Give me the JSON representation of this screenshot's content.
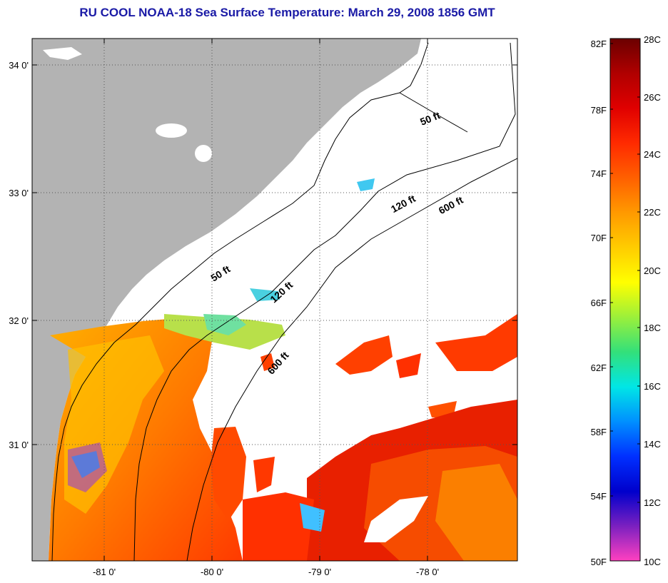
{
  "title": "RU COOL  NOAA-18  Sea Surface Temperature:  March 29, 2008 1856 GMT",
  "map": {
    "latitude_labels": [
      "34 0'",
      "33 0'",
      "32 0'",
      "31 0'"
    ],
    "longitude_labels": [
      "-81 0'",
      "-80 0'",
      "-79 0'",
      "-78 0'"
    ],
    "isobath_labels": [
      "50 ft",
      "120 ft",
      "600 ft",
      "50 ft",
      "120 ft",
      "600 ft"
    ],
    "colors": {
      "land": "#b3b3b3",
      "cloud": "#ffffff",
      "coast_line": "#000000"
    }
  },
  "colorbar": {
    "fahrenheit_labels": [
      "82F",
      "78F",
      "74F",
      "70F",
      "66F",
      "62F",
      "58F",
      "54F",
      "50F"
    ],
    "celsius_labels": [
      "28C",
      "26C",
      "24C",
      "22C",
      "20C",
      "18C",
      "16C",
      "14C",
      "12C",
      "10C"
    ],
    "gradient_colors": [
      "#6b0000",
      "#b00000",
      "#e00000",
      "#ff2a00",
      "#ff6000",
      "#ff9900",
      "#ffcc00",
      "#ffff00",
      "#9cf03a",
      "#33e07a",
      "#00e6e6",
      "#0090ff",
      "#0030ff",
      "#0000cc",
      "#7a20c0",
      "#ff40c0"
    ]
  }
}
